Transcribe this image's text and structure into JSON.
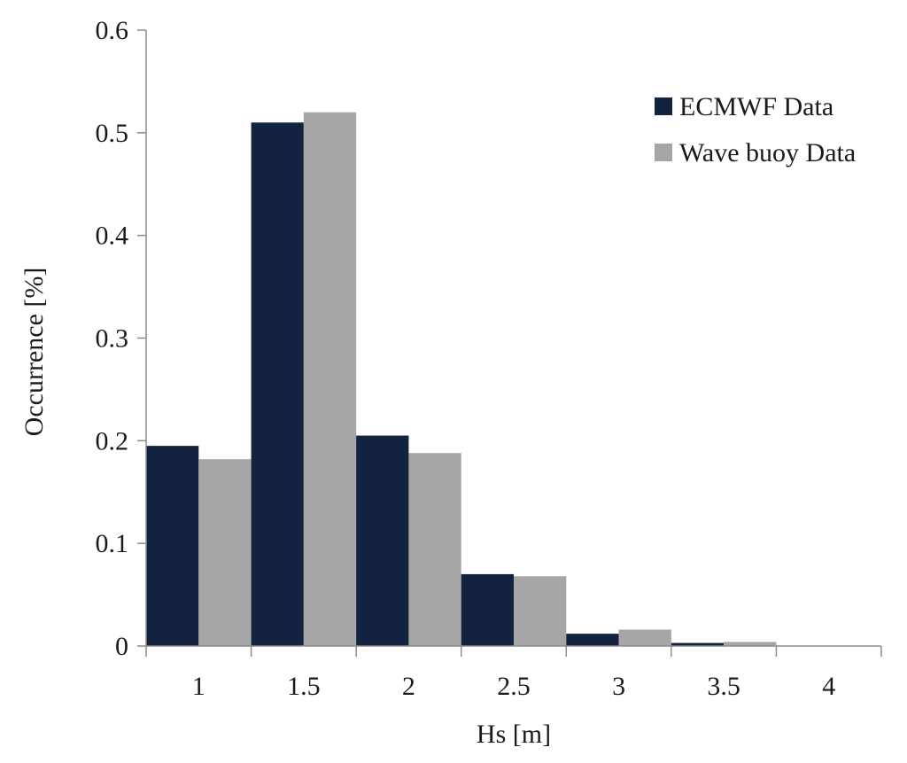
{
  "chart_data": {
    "type": "bar",
    "categories": [
      "1",
      "1.5",
      "2",
      "2.5",
      "3",
      "3.5",
      "4"
    ],
    "series": [
      {
        "name": "ECMWF Data",
        "color": "#13233f",
        "values": [
          0.195,
          0.51,
          0.205,
          0.07,
          0.012,
          0.003,
          0.0
        ]
      },
      {
        "name": "Wave buoy Data",
        "color": "#a6a6a6",
        "values": [
          0.182,
          0.52,
          0.188,
          0.068,
          0.016,
          0.004,
          0.0
        ]
      }
    ],
    "title": "",
    "xlabel": "Hs [m]",
    "ylabel": "Occurrence [%]",
    "ylim": [
      0,
      0.6
    ],
    "yticks": [
      "0",
      "0.1",
      "0.2",
      "0.3",
      "0.4",
      "0.5",
      "0.6"
    ],
    "grid": false,
    "legend_position": "top-right"
  }
}
